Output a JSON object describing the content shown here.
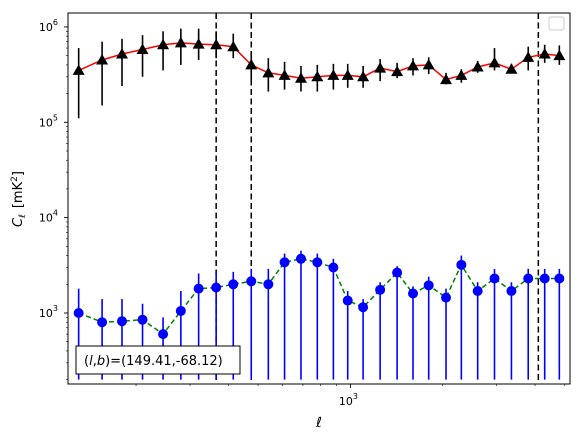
{
  "chart_data": {
    "type": "scatter",
    "xlabel": "ℓ",
    "ylabel_main": "C",
    "ylabel_sub": "ℓ",
    "ylabel_unit": "[mK",
    "ylabel_unit_sup": "2",
    "ylabel_unit_end": "]",
    "x_scale": "log",
    "y_scale": "log",
    "xlim": [
      120,
      5200
    ],
    "ylim": [
      180,
      1400000
    ],
    "x_ticks": [
      {
        "value": 1000,
        "base": "10",
        "exp": "3"
      }
    ],
    "y_ticks": [
      {
        "value": 1000,
        "base": "10",
        "exp": "3"
      },
      {
        "value": 10000,
        "base": "10",
        "exp": "4"
      },
      {
        "value": 100000,
        "base": "10",
        "exp": "5"
      },
      {
        "value": 1000000,
        "base": "10",
        "exp": "6"
      }
    ],
    "vlines": [
      365,
      475,
      4100
    ],
    "legend": {
      "position": "top-right",
      "entries": []
    },
    "annotation": {
      "prefix": "(",
      "l": "l",
      "comma": ",",
      "b": "b",
      "suffix": ")=(149.41,-68.12)"
    },
    "series": [
      {
        "marker": "triangle",
        "color": "#000000",
        "fit_color": "#ff0000",
        "fit_style": "solid",
        "x": [
          130,
          155,
          180,
          210,
          245,
          280,
          320,
          365,
          415,
          475,
          540,
          610,
          690,
          780,
          880,
          980,
          1100,
          1250,
          1420,
          1600,
          1800,
          2050,
          2300,
          2600,
          2950,
          3350,
          3800,
          4300,
          4800
        ],
        "y": [
          350000,
          450000,
          520000,
          580000,
          650000,
          680000,
          660000,
          650000,
          620000,
          400000,
          330000,
          310000,
          290000,
          300000,
          310000,
          310000,
          300000,
          370000,
          340000,
          390000,
          400000,
          280000,
          310000,
          380000,
          420000,
          360000,
          480000,
          520000,
          500000
        ],
        "yerr_lo": [
          110000,
          150000,
          240000,
          300000,
          350000,
          400000,
          450000,
          470000,
          470000,
          280000,
          210000,
          220000,
          210000,
          210000,
          220000,
          230000,
          230000,
          270000,
          290000,
          310000,
          320000,
          250000,
          260000,
          330000,
          350000,
          330000,
          350000,
          420000,
          400000
        ],
        "yerr_hi": [
          600000,
          700000,
          750000,
          820000,
          900000,
          960000,
          960000,
          900000,
          850000,
          550000,
          470000,
          430000,
          390000,
          400000,
          410000,
          410000,
          390000,
          460000,
          420000,
          470000,
          480000,
          330000,
          360000,
          440000,
          600000,
          410000,
          620000,
          650000,
          640000
        ],
        "fit_y": [
          350000,
          450000,
          520000,
          580000,
          650000,
          680000,
          660000,
          650000,
          620000,
          400000,
          330000,
          310000,
          290000,
          300000,
          310000,
          310000,
          300000,
          370000,
          340000,
          390000,
          400000,
          280000,
          310000,
          380000,
          420000,
          360000,
          480000,
          520000,
          500000
        ]
      },
      {
        "marker": "circle",
        "color": "#0000ff",
        "fit_color": "#008000",
        "fit_style": "dashed",
        "x": [
          130,
          155,
          180,
          210,
          245,
          280,
          320,
          365,
          415,
          475,
          540,
          610,
          690,
          780,
          880,
          980,
          1100,
          1250,
          1420,
          1600,
          1800,
          2050,
          2300,
          2600,
          2950,
          3350,
          3800,
          4300,
          4800
        ],
        "y": [
          1000,
          800,
          820,
          850,
          600,
          1050,
          1800,
          1850,
          2000,
          2150,
          2000,
          3400,
          3700,
          3400,
          3000,
          1350,
          1150,
          1750,
          2650,
          1600,
          1950,
          1450,
          3200,
          1700,
          2300,
          1700,
          2300,
          2300,
          2300
        ],
        "yerr_lo": [
          200,
          200,
          200,
          200,
          200,
          200,
          200,
          200,
          200,
          200,
          200,
          200,
          200,
          200,
          200,
          200,
          200,
          200,
          200,
          200,
          200,
          200,
          200,
          200,
          200,
          200,
          200,
          200,
          200
        ],
        "yerr_hi": [
          1800,
          1400,
          1400,
          1250,
          900,
          1700,
          2600,
          2700,
          2700,
          2900,
          2900,
          4200,
          4500,
          4200,
          3700,
          1700,
          1400,
          2100,
          3100,
          1900,
          2400,
          1800,
          4000,
          2100,
          2900,
          2100,
          2900,
          2900,
          2900
        ],
        "fit_y": [
          1000,
          800,
          820,
          850,
          600,
          1050,
          1800,
          1850,
          2000,
          2150,
          2000,
          3400,
          3700,
          3400,
          3000,
          1350,
          1150,
          1750,
          2650,
          1600,
          1950,
          1450,
          3200,
          1700,
          2300,
          1700,
          2300,
          2300,
          2300
        ]
      }
    ]
  }
}
